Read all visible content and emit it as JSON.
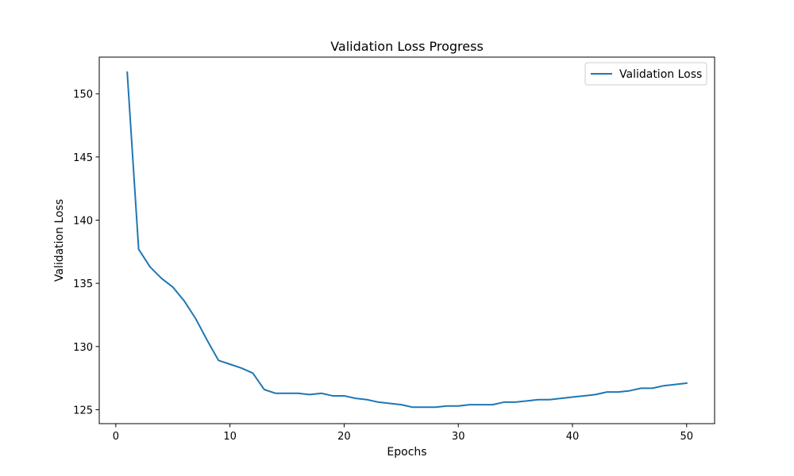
{
  "chart_data": {
    "type": "line",
    "title": "Validation Loss Progress",
    "xlabel": "Epochs",
    "ylabel": "Validation Loss",
    "xlim": [
      -1.45,
      52.45
    ],
    "ylim": [
      123.9,
      152.9
    ],
    "xticks": [
      0,
      10,
      20,
      30,
      40,
      50
    ],
    "yticks": [
      125,
      130,
      135,
      140,
      145,
      150
    ],
    "grid": false,
    "legend_position": "upper right",
    "series": [
      {
        "name": "Validation Loss",
        "color": "#1f77b4",
        "x": [
          1,
          2,
          3,
          4,
          5,
          6,
          7,
          8,
          9,
          10,
          11,
          12,
          13,
          14,
          15,
          16,
          17,
          18,
          19,
          20,
          21,
          22,
          23,
          24,
          25,
          26,
          27,
          28,
          29,
          30,
          31,
          32,
          33,
          34,
          35,
          36,
          37,
          38,
          39,
          40,
          41,
          42,
          43,
          44,
          45,
          46,
          47,
          48,
          49,
          50
        ],
        "y": [
          151.7,
          137.7,
          136.3,
          135.4,
          134.7,
          133.6,
          132.2,
          130.5,
          128.9,
          128.6,
          128.3,
          127.9,
          126.6,
          126.3,
          126.3,
          126.3,
          126.2,
          126.3,
          126.1,
          126.1,
          125.9,
          125.8,
          125.6,
          125.5,
          125.4,
          125.2,
          125.2,
          125.2,
          125.3,
          125.3,
          125.4,
          125.4,
          125.4,
          125.6,
          125.6,
          125.7,
          125.8,
          125.8,
          125.9,
          126.0,
          126.1,
          126.2,
          126.4,
          126.4,
          126.5,
          126.7,
          126.7,
          126.9,
          127.0,
          127.1
        ]
      }
    ]
  }
}
